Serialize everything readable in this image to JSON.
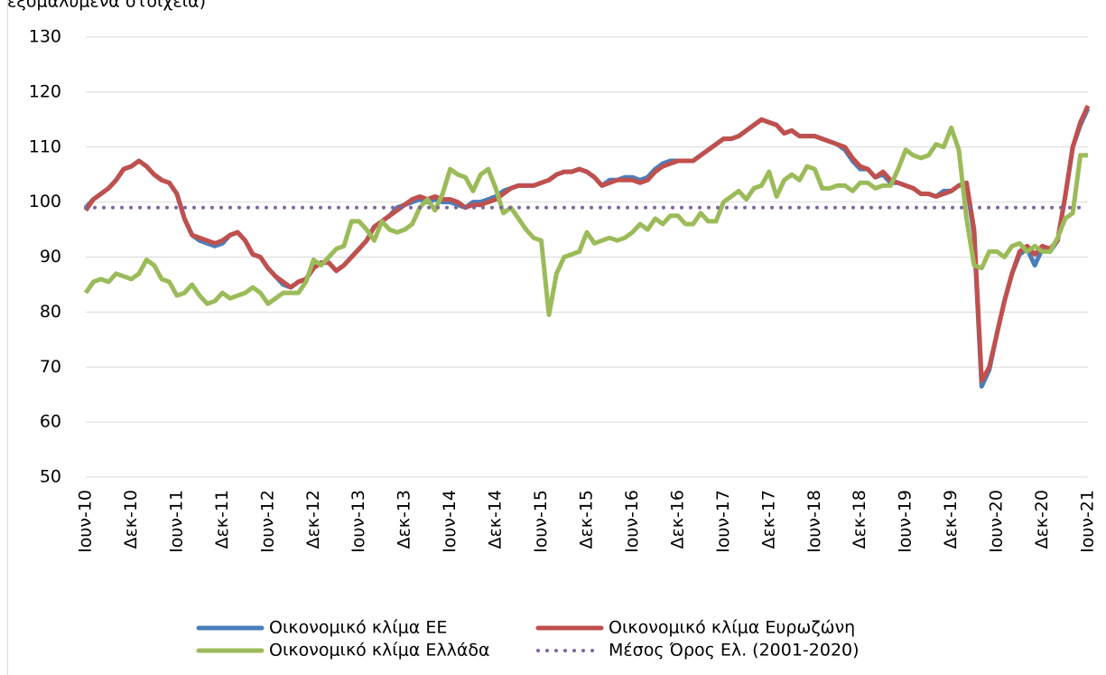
{
  "chart_data": {
    "type": "line",
    "title": "εξομαλυμένα στοιχεία)",
    "categories": [
      "Ιουν-10",
      null,
      null,
      null,
      null,
      null,
      "Δεκ-10",
      null,
      null,
      null,
      null,
      null,
      "Ιουν-11",
      null,
      null,
      null,
      null,
      null,
      "Δεκ-11",
      null,
      null,
      null,
      null,
      null,
      "Ιουν-12",
      null,
      null,
      null,
      null,
      null,
      "Δεκ-12",
      null,
      null,
      null,
      null,
      null,
      "Ιουν-13",
      null,
      null,
      null,
      null,
      null,
      "Δεκ-13",
      null,
      null,
      null,
      null,
      null,
      "Ιουν-14",
      null,
      null,
      null,
      null,
      null,
      "Δεκ-14",
      null,
      null,
      null,
      null,
      null,
      "Ιουν-15",
      null,
      null,
      null,
      null,
      null,
      "Δεκ-15",
      null,
      null,
      null,
      null,
      null,
      "Ιουν-16",
      null,
      null,
      null,
      null,
      null,
      "Δεκ-16",
      null,
      null,
      null,
      null,
      null,
      "Ιουν-17",
      null,
      null,
      null,
      null,
      null,
      "Δεκ-17",
      null,
      null,
      null,
      null,
      null,
      "Ιουν-18",
      null,
      null,
      null,
      null,
      null,
      "Δεκ-18",
      null,
      null,
      null,
      null,
      null,
      "Ιουν-19",
      null,
      null,
      null,
      null,
      null,
      "Δεκ-19",
      null,
      null,
      null,
      null,
      null,
      "Ιουν-20",
      null,
      null,
      null,
      null,
      null,
      "Δεκ-20",
      null,
      null,
      null,
      null,
      null,
      "Ιουν-21"
    ],
    "series": [
      {
        "name": "Οικονομικό κλίμα ΕΕ",
        "color": "#4a7ebb",
        "values": [
          99,
          100.5,
          101.5,
          102.5,
          104,
          106,
          106.5,
          107.5,
          106.5,
          105,
          104,
          103.5,
          101.5,
          97,
          94,
          93,
          92.5,
          92,
          92.5,
          94,
          94.5,
          93,
          90.5,
          90,
          88,
          86.5,
          85,
          84.5,
          85.5,
          86,
          88,
          89,
          89,
          87.5,
          88.5,
          90,
          91.5,
          93,
          95.5,
          96.5,
          97.5,
          99,
          99.5,
          100,
          100.5,
          100,
          100.5,
          100,
          100,
          99.5,
          99,
          100,
          100,
          100.5,
          101,
          102,
          102.5,
          103,
          103,
          103,
          103.5,
          104,
          105,
          105.5,
          105.5,
          106,
          105.5,
          104.5,
          103,
          104,
          104,
          104.5,
          104.5,
          104,
          104.5,
          106,
          107,
          107.5,
          107.5,
          107.5,
          107.5,
          108.5,
          109.5,
          110.5,
          111.5,
          111.5,
          112,
          113,
          114,
          115,
          114.5,
          114,
          112.5,
          113,
          112,
          112,
          112,
          111.5,
          111,
          110.5,
          109.5,
          107.5,
          106,
          106,
          104.5,
          105,
          103.5,
          103.5,
          103,
          102.5,
          101.5,
          101.5,
          101,
          102,
          102,
          103,
          103.5,
          94,
          66.5,
          69.5,
          76,
          82,
          87,
          90.5,
          91.5,
          88.5,
          91.5,
          91,
          93,
          101,
          110,
          114,
          117
        ]
      },
      {
        "name": "Οικονομικό κλίμα Ευρωζώνη",
        "color": "#c0504d",
        "values": [
          98.5,
          100.5,
          101.5,
          102.5,
          104,
          106,
          106.5,
          107.5,
          106.5,
          105,
          104,
          103.5,
          101.5,
          97,
          94,
          93.5,
          93,
          92.5,
          93,
          94,
          94.5,
          93,
          90.5,
          90,
          88,
          86.5,
          85.5,
          84.5,
          85.5,
          86,
          88,
          89,
          89,
          87.5,
          88.5,
          90,
          91.5,
          93,
          95.5,
          96.5,
          97.5,
          98.5,
          99.5,
          100.5,
          101,
          100.5,
          101,
          100.5,
          100.5,
          100,
          99,
          99.5,
          99.5,
          100,
          100.5,
          101.5,
          102.5,
          103,
          103,
          103,
          103.5,
          104,
          105,
          105.5,
          105.5,
          106,
          105.5,
          104.5,
          103,
          103.5,
          104,
          104,
          104,
          103.5,
          104,
          105.5,
          106.5,
          107,
          107.5,
          107.5,
          107.5,
          108.5,
          109.5,
          110.5,
          111.5,
          111.5,
          112,
          113,
          114,
          115,
          114.5,
          114,
          112.5,
          113,
          112,
          112,
          112,
          111.5,
          111,
          110.5,
          110,
          108,
          106.5,
          106,
          104.5,
          105.5,
          104,
          103.5,
          103,
          102.5,
          101.5,
          101.5,
          101,
          101.5,
          102,
          103,
          103.5,
          95,
          67.5,
          70,
          76,
          82,
          87,
          91,
          92,
          90.5,
          92,
          91.5,
          93,
          101,
          110,
          114.5,
          117.5
        ]
      },
      {
        "name": "Οικονομικό κλίμα Ελλάδα",
        "color": "#9bbb59",
        "values": [
          83.5,
          85.5,
          86,
          85.5,
          87,
          86.5,
          86,
          87,
          89.5,
          88.5,
          86,
          85.5,
          83,
          83.5,
          85,
          83,
          81.5,
          82,
          83.5,
          82.5,
          83,
          83.5,
          84.5,
          83.5,
          81.5,
          82.5,
          83.5,
          83.5,
          83.5,
          85.5,
          89.5,
          88.5,
          90,
          91.5,
          92,
          96.5,
          96.5,
          95,
          93,
          96.5,
          95,
          94.5,
          95,
          96,
          99,
          100.5,
          98.5,
          101.5,
          106,
          105,
          104.5,
          102,
          105,
          106,
          102.5,
          98,
          99,
          97,
          95,
          93.5,
          93,
          79.5,
          87,
          90,
          90.5,
          91,
          94.5,
          92.5,
          93,
          93.5,
          93,
          93.5,
          94.5,
          96,
          95,
          97,
          96,
          97.5,
          97.5,
          96,
          96,
          98,
          96.5,
          96.5,
          100,
          101,
          102,
          100.5,
          102.5,
          103,
          105.5,
          101,
          104,
          105,
          104,
          106.5,
          106,
          102.5,
          102.5,
          103,
          103,
          102,
          103.5,
          103.5,
          102.5,
          103,
          103,
          106,
          109.5,
          108.5,
          108,
          108.5,
          110.5,
          110,
          113.5,
          109.5,
          97,
          88.5,
          88,
          91,
          91,
          90,
          92,
          92.5,
          91,
          92,
          91,
          91,
          93.5,
          97,
          98,
          108.5,
          108.5
        ]
      },
      {
        "name": "Μέσος Όρος Ελ. (2001-2020)",
        "color": "#8064a2",
        "value": 99,
        "dash": "dotted"
      }
    ],
    "ylim": [
      50,
      130
    ],
    "yticks": [
      50,
      60,
      70,
      80,
      90,
      100,
      110,
      120,
      130
    ],
    "grid": true,
    "legend": "bottom"
  }
}
